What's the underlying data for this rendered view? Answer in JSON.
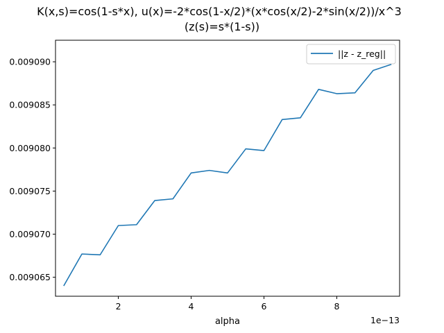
{
  "chart_data": {
    "type": "line",
    "title": "K(x,s)=cos(1-s*x), u(x)=-2*cos(1-x/2)*(x*cos(x/2)-2*sin(x/2))/x^3",
    "subtitle": "(z(s)=s*(1-s))",
    "xlabel": "alpha",
    "ylabel": "",
    "x_offset_label": "1e−13",
    "x_tick_labels": [
      "2",
      "4",
      "6",
      "8"
    ],
    "x_ticks": [
      2,
      4,
      6,
      8
    ],
    "y_tick_labels": [
      "0.009065",
      "0.009070",
      "0.009075",
      "0.009080",
      "0.009085",
      "0.009090"
    ],
    "y_ticks": [
      0.009065,
      0.00907,
      0.009075,
      0.00908,
      0.009085,
      0.00909
    ],
    "xlim": [
      0.275,
      9.725
    ],
    "ylim": [
      0.0090628,
      0.0090925
    ],
    "legend_position": "top-right",
    "grid": false,
    "series": [
      {
        "name": "||z - z_reg||",
        "color": "#1f77b4",
        "x": [
          0.5,
          1.0,
          1.5,
          2.0,
          2.5,
          3.0,
          3.5,
          4.0,
          4.5,
          5.0,
          5.5,
          6.0,
          6.5,
          7.0,
          7.5,
          8.0,
          8.5,
          9.0,
          9.5
        ],
        "y": [
          0.009064,
          0.0090677,
          0.0090676,
          0.009071,
          0.0090711,
          0.0090739,
          0.0090741,
          0.0090771,
          0.0090774,
          0.0090771,
          0.0090799,
          0.0090797,
          0.0090833,
          0.0090835,
          0.0090868,
          0.0090863,
          0.0090864,
          0.009089,
          0.0090897
        ]
      }
    ]
  }
}
